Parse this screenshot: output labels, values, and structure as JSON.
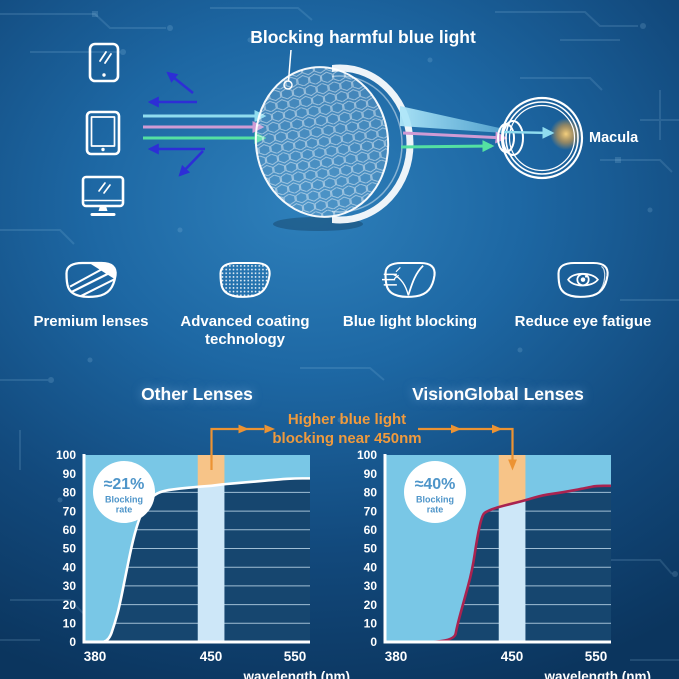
{
  "colors": {
    "background_center": "#2e80bb",
    "background_edge": "#0b355e",
    "accent_orange": "#ec9333",
    "band_orange": "#f7c488",
    "band_pale_blue": "#cde7f8",
    "fill_light_blue": "#79c7e6",
    "plot_background": "#16466f",
    "gridline": "#c3dcee",
    "curve_left": "#ffffff",
    "curve_right": "#a92350",
    "badge_text_blue": "#4e95c9",
    "ray_cyan": "#8fdcef",
    "ray_pink": "#cf9bd4",
    "ray_green": "#54e0a2",
    "ray_deep_blue": "#2d2ed6",
    "macula_glow": "#ffc768"
  },
  "hero": {
    "title": "Blocking harmful blue light",
    "macula_label": "Macula",
    "device_icons": [
      "smartphone-icon",
      "tablet-icon",
      "monitor-icon"
    ],
    "lens_icon": "honeycomb-coated-lens",
    "eye_icon": "eye-cross-section"
  },
  "features": [
    {
      "icon": "premium-lens-icon",
      "label": "Premium lenses"
    },
    {
      "icon": "coated-lens-icon",
      "label": "Advanced coating technology"
    },
    {
      "icon": "blue-light-blocking-lens-icon",
      "label": "Blue light blocking"
    },
    {
      "icon": "eye-in-lens-icon",
      "label": "Reduce eye fatigue"
    }
  ],
  "comparison": {
    "annotation_line1": "Higher blue light",
    "annotation_line2": "blocking near 450nm",
    "axis": {
      "x_label": "wavelength (nm)",
      "x_ticks": [
        "380",
        "450",
        "550"
      ],
      "y_ticks": [
        "100",
        "90",
        "80",
        "70",
        "60",
        "50",
        "40",
        "30",
        "20",
        "10",
        "0"
      ]
    },
    "left": {
      "title": "Other Lenses",
      "badge_value": "≈21%",
      "badge_label1": "Blocking",
      "badge_label2": "rate"
    },
    "right": {
      "title": "VisionGlobal Lenses",
      "badge_value": "≈40%",
      "badge_label1": "Blocking",
      "badge_label2": "rate"
    }
  },
  "chart_data": [
    {
      "type": "area",
      "title": "Other Lenses",
      "xlabel": "wavelength (nm)",
      "ylabel": "",
      "xlim": [
        380,
        568
      ],
      "ylim": [
        0,
        100
      ],
      "x_ticks": [
        380,
        450,
        550
      ],
      "y_tick_step": 10,
      "grid": true,
      "legend": false,
      "highlight_band_nm": [
        442,
        466
      ],
      "blocking_rate_annotation": "≈21% Blocking rate",
      "series": [
        {
          "name": "light blocked above curve",
          "points": [
            [
              380,
              0
            ],
            [
              388,
              0
            ],
            [
              392,
              10
            ],
            [
              395,
              20
            ],
            [
              399,
              38
            ],
            [
              403,
              55
            ],
            [
              407,
              67
            ],
            [
              411,
              74
            ],
            [
              416,
              79
            ],
            [
              422,
              81
            ],
            [
              431,
              82
            ],
            [
              442,
              83
            ],
            [
              450,
              83.5
            ],
            [
              467,
              84.5
            ],
            [
              496,
              85.5
            ],
            [
              532,
              87
            ],
            [
              550,
              87.5
            ]
          ]
        }
      ]
    },
    {
      "type": "area",
      "title": "VisionGlobal Lenses",
      "xlabel": "wavelength (nm)",
      "ylabel": "",
      "xlim": [
        380,
        568
      ],
      "ylim": [
        0,
        100
      ],
      "x_ticks": [
        380,
        450,
        550
      ],
      "y_tick_step": 10,
      "grid": true,
      "legend": false,
      "highlight_band_nm": [
        442,
        466
      ],
      "blocking_rate_annotation": "≈40% Blocking rate",
      "series": [
        {
          "name": "light blocked above curve",
          "points": [
            [
              380,
              0
            ],
            [
              415,
              0
            ],
            [
              417,
              9
            ],
            [
              421,
              22
            ],
            [
              426,
              38
            ],
            [
              429,
              56
            ],
            [
              432,
              68
            ],
            [
              435,
              70
            ],
            [
              441,
              72
            ],
            [
              450,
              74
            ],
            [
              468,
              76
            ],
            [
              486,
              78.5
            ],
            [
              510,
              80
            ],
            [
              540,
              82.5
            ],
            [
              550,
              83.5
            ]
          ]
        }
      ]
    }
  ]
}
